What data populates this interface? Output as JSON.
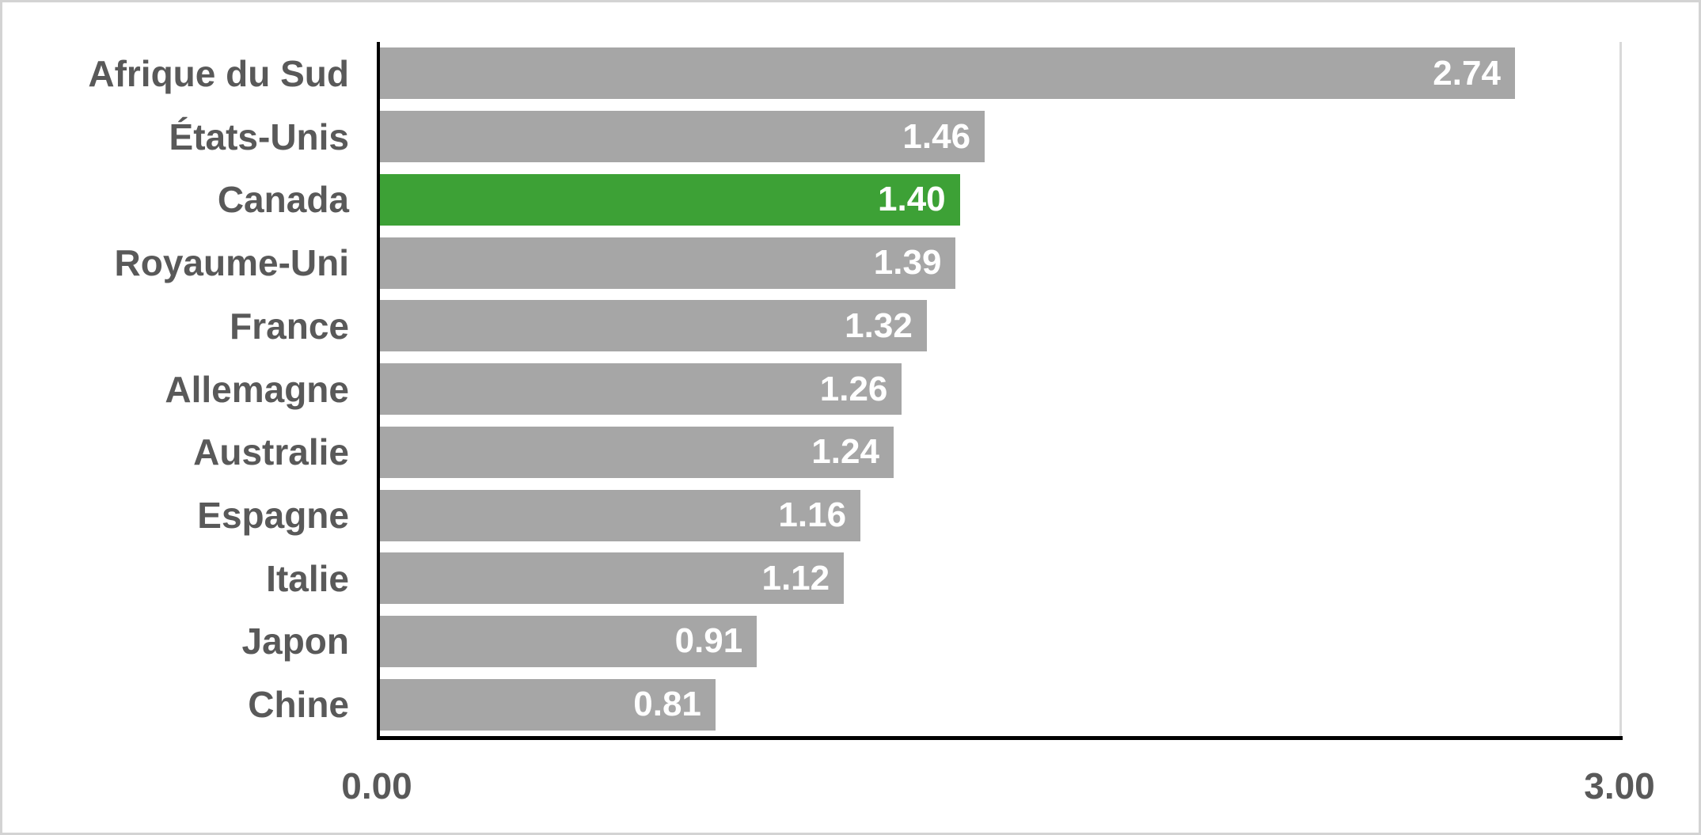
{
  "chart_data": {
    "type": "bar",
    "orientation": "horizontal",
    "title": "",
    "categories": [
      "Afrique du Sud",
      "États-Unis",
      "Canada",
      "Royaume-Uni",
      "France",
      "Allemagne",
      "Australie",
      "Espagne",
      "Italie",
      "Japon",
      "Chine"
    ],
    "values": [
      2.74,
      1.46,
      1.4,
      1.39,
      1.32,
      1.26,
      1.24,
      1.16,
      1.12,
      0.91,
      0.81
    ],
    "value_labels": [
      "2.74",
      "1.46",
      "1.40",
      "1.39",
      "1.32",
      "1.26",
      "1.24",
      "1.16",
      "1.12",
      "0.91",
      "0.81"
    ],
    "highlighted_category": "Canada",
    "xlim": [
      0,
      3
    ],
    "x_ticks": [
      "0.00",
      "3.00"
    ],
    "xlabel": "",
    "ylabel": "",
    "legend": "none",
    "grid": "right-edge-gridline-only",
    "colors": {
      "bar_default": "#A6A6A6",
      "bar_highlight": "#3DA136",
      "value_label": "#FFFFFF",
      "category_label": "#595959",
      "tick_label": "#595959",
      "axis_line": "#000000",
      "gridline": "#D9D9D9",
      "frame_border": "#D3D3D3",
      "background": "#FFFFFF"
    }
  }
}
